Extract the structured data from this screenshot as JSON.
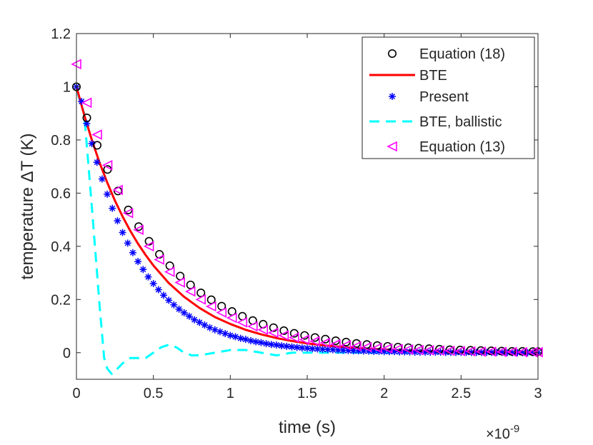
{
  "chart_data": {
    "type": "line",
    "title": "",
    "xlabel": "time (s)",
    "ylabel": "temperature ΔT (K)",
    "x_exponent_label": "×10",
    "x_exponent_power": "-9",
    "xlim": [
      0,
      3
    ],
    "ylim": [
      -0.1,
      1.2
    ],
    "x_ticks": [
      0,
      0.5,
      1,
      1.5,
      2,
      2.5,
      3
    ],
    "x_tick_labels": [
      "0",
      "0.5",
      "1",
      "1.5",
      "2",
      "2.5",
      "3"
    ],
    "y_ticks": [
      0,
      0.2,
      0.4,
      0.6,
      0.8,
      1,
      1.2
    ],
    "y_tick_labels": [
      "0",
      "0.2",
      "0.4",
      "0.6",
      "0.8",
      "1",
      "1.2"
    ],
    "grid": false,
    "legend_position": "top-right",
    "series": [
      {
        "name": "Equation (18)",
        "marker": "circle",
        "color": "#000000",
        "x": [
          0,
          0.0674,
          0.1348,
          0.2022,
          0.2697,
          0.3371,
          0.4045,
          0.4719,
          0.5393,
          0.6067,
          0.6742,
          0.7416,
          0.809,
          0.8764,
          0.9438,
          1.0112,
          1.0787,
          1.1461,
          1.2135,
          1.2809,
          1.3483,
          1.4157,
          1.4831,
          1.5506,
          1.618,
          1.6854,
          1.7528,
          1.8202,
          1.8876,
          1.9551,
          2.0225,
          2.0899,
          2.1573,
          2.2247,
          2.2921,
          2.3596,
          2.427,
          2.4944,
          2.5618,
          2.6292,
          2.6966,
          2.764,
          2.8315,
          2.8989,
          2.9663,
          3.0
        ],
        "y": [
          1.0,
          0.883,
          0.78,
          0.689,
          0.608,
          0.537,
          0.474,
          0.419,
          0.37,
          0.327,
          0.288,
          0.255,
          0.225,
          0.199,
          0.175,
          0.155,
          0.137,
          0.121,
          0.107,
          0.094,
          0.083,
          0.073,
          0.065,
          0.057,
          0.051,
          0.045,
          0.04,
          0.035,
          0.031,
          0.027,
          0.024,
          0.021,
          0.019,
          0.017,
          0.015,
          0.013,
          0.011,
          0.01,
          0.009,
          0.008,
          0.007,
          0.006,
          0.005,
          0.005,
          0.004,
          0.004
        ]
      },
      {
        "name": "BTE",
        "marker": "line",
        "color": "#ff0000",
        "x": [
          0,
          0.05,
          0.1,
          0.15,
          0.2,
          0.25,
          0.3,
          0.35,
          0.4,
          0.45,
          0.5,
          0.6,
          0.7,
          0.8,
          0.9,
          1.0,
          1.1,
          1.2,
          1.3,
          1.4,
          1.5,
          1.6,
          1.7,
          1.8,
          1.9,
          2.0,
          2.2,
          2.4,
          2.6,
          2.8,
          3.0
        ],
        "y": [
          1.0,
          0.895,
          0.8,
          0.715,
          0.64,
          0.572,
          0.512,
          0.458,
          0.41,
          0.367,
          0.328,
          0.262,
          0.21,
          0.168,
          0.134,
          0.108,
          0.086,
          0.069,
          0.055,
          0.044,
          0.035,
          0.028,
          0.023,
          0.018,
          0.014,
          0.012,
          0.007,
          0.005,
          0.003,
          0.002,
          0.001
        ]
      },
      {
        "name": "Present",
        "marker": "asterisk",
        "color": "#0000ff",
        "x": [
          0,
          0.0333,
          0.0667,
          0.1,
          0.1333,
          0.1667,
          0.2,
          0.2333,
          0.2667,
          0.3,
          0.3333,
          0.3667,
          0.4,
          0.4333,
          0.4667,
          0.5,
          0.5333,
          0.5667,
          0.6,
          0.6333,
          0.6667,
          0.7,
          0.7333,
          0.7667,
          0.8,
          0.8333,
          0.8667,
          0.9,
          0.9333,
          0.9667,
          1.0,
          1.0333,
          1.0667,
          1.1,
          1.1333,
          1.1667,
          1.2,
          1.2333,
          1.2667,
          1.3,
          1.3333,
          1.3667,
          1.4,
          1.4333,
          1.4667,
          1.5,
          1.5333,
          1.5667,
          1.6,
          1.6333,
          1.6667,
          1.7,
          1.7333,
          1.7667,
          1.8,
          1.8333,
          1.8667,
          1.9,
          1.9333,
          1.9667,
          2.0,
          2.0333,
          2.0667,
          2.1,
          2.1333,
          2.1667,
          2.2,
          2.2333,
          2.2667,
          2.3,
          2.3333,
          2.3667,
          2.4,
          2.4333,
          2.4667,
          2.5,
          2.5333,
          2.5667,
          2.6,
          2.6333,
          2.6667,
          2.7,
          2.7333,
          2.7667,
          2.8,
          2.8333,
          2.8667,
          2.9,
          2.9333,
          2.9667,
          3.0
        ],
        "y": [
          1.0,
          0.945,
          0.862,
          0.786,
          0.716,
          0.653,
          0.596,
          0.543,
          0.496,
          0.452,
          0.412,
          0.376,
          0.343,
          0.313,
          0.285,
          0.26,
          0.237,
          0.216,
          0.197,
          0.18,
          0.164,
          0.15,
          0.137,
          0.124,
          0.114,
          0.104,
          0.094,
          0.086,
          0.079,
          0.072,
          0.065,
          0.06,
          0.054,
          0.05,
          0.045,
          0.041,
          0.038,
          0.034,
          0.031,
          0.029,
          0.026,
          0.024,
          0.022,
          0.02,
          0.018,
          0.017,
          0.015,
          0.014,
          0.013,
          0.012,
          0.011,
          0.01,
          0.009,
          0.008,
          0.007,
          0.007,
          0.006,
          0.006,
          0.005,
          0.005,
          0.004,
          0.004,
          0.004,
          0.003,
          0.003,
          0.003,
          0.002,
          0.002,
          0.002,
          0.002,
          0.002,
          0.002,
          0.001,
          0.001,
          0.001,
          0.001,
          0.001,
          0.001,
          0.001,
          0.001,
          0.001,
          0.001,
          0.001,
          0.001,
          0.0,
          0.0,
          0.0,
          0.0,
          0.0,
          0.0,
          0.0
        ]
      },
      {
        "name": "BTE, ballistic",
        "marker": "dashed-line",
        "color": "#00ffff",
        "x": [
          0,
          0.05,
          0.1,
          0.15,
          0.18,
          0.2,
          0.23,
          0.25,
          0.3,
          0.35,
          0.4,
          0.45,
          0.5,
          0.55,
          0.6,
          0.65,
          0.7,
          0.75,
          0.8,
          0.9,
          1.0,
          1.05,
          1.1,
          1.2,
          1.3,
          1.4,
          1.5,
          1.6,
          1.7,
          1.8,
          2.0,
          2.2,
          2.4,
          2.6,
          2.8,
          3.0
        ],
        "y": [
          0.99,
          0.9,
          0.55,
          0.18,
          -0.02,
          -0.06,
          -0.08,
          -0.07,
          -0.04,
          -0.02,
          -0.02,
          -0.02,
          0.0,
          0.02,
          0.03,
          0.02,
          0.0,
          -0.01,
          -0.01,
          0.0,
          0.01,
          0.01,
          0.01,
          0.0,
          -0.01,
          0.0,
          0.0,
          0.0,
          0.0,
          0.0,
          0.0,
          0.0,
          0.0,
          0.0,
          0.0,
          0.0
        ]
      },
      {
        "name": "Equation (13)",
        "marker": "triangle-left",
        "color": "#ff00ff",
        "x": [
          0,
          0.0674,
          0.1348,
          0.2022,
          0.2697,
          0.3371,
          0.4045,
          0.4719,
          0.5393,
          0.6067,
          0.6742,
          0.7416,
          0.809,
          0.8764,
          0.9438,
          1.0112,
          1.0787,
          1.1461,
          1.2135,
          1.2809,
          1.3483,
          1.4157,
          1.4831,
          1.5506,
          1.618,
          1.6854,
          1.7528,
          1.8202,
          1.8876,
          1.9551,
          2.0225,
          2.0899,
          2.1573,
          2.2247,
          2.2921,
          2.3596,
          2.427,
          2.4944,
          2.5618,
          2.6292,
          2.6966,
          2.764,
          2.8315,
          2.8989,
          2.9663,
          3.0
        ],
        "y": [
          1.085,
          0.94,
          0.82,
          0.705,
          0.612,
          0.525,
          0.462,
          0.4,
          0.35,
          0.304,
          0.264,
          0.23,
          0.2,
          0.174,
          0.151,
          0.131,
          0.114,
          0.099,
          0.086,
          0.075,
          0.065,
          0.057,
          0.049,
          0.043,
          0.037,
          0.032,
          0.028,
          0.024,
          0.021,
          0.018,
          0.016,
          0.014,
          0.012,
          0.01,
          0.009,
          0.008,
          0.007,
          0.006,
          0.005,
          0.004,
          0.004,
          0.003,
          0.003,
          0.002,
          0.002,
          0.002
        ]
      }
    ]
  }
}
